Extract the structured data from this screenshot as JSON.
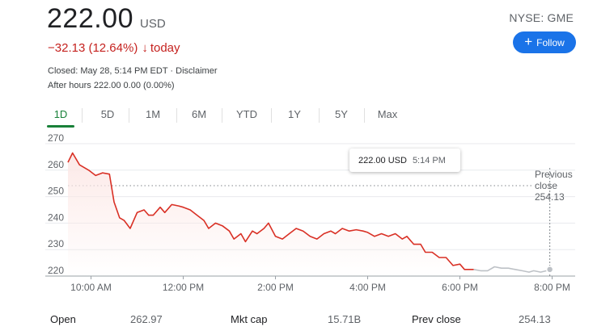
{
  "quote": {
    "price": "222.00",
    "currency": "USD",
    "change": "−32.13 (12.64%)",
    "arrow": "↓",
    "period": "today",
    "closed_text": "Closed: May 28, 5:14 PM EDT ·",
    "disclaimer": "Disclaimer",
    "after_hours": "After hours 222.00 0.00 (0.00%)",
    "ticker": "NYSE: GME",
    "follow_label": "Follow",
    "follow_icon": "plus-icon",
    "accent_color": "#1a73e8",
    "down_color": "#c5221f"
  },
  "tabs": [
    {
      "label": "1D",
      "active": true
    },
    {
      "label": "5D",
      "active": false
    },
    {
      "label": "1M",
      "active": false
    },
    {
      "label": "6M",
      "active": false
    },
    {
      "label": "YTD",
      "active": false
    },
    {
      "label": "1Y",
      "active": false
    },
    {
      "label": "5Y",
      "active": false
    },
    {
      "label": "Max",
      "active": false
    }
  ],
  "tooltip": {
    "price": "222.00 USD",
    "time": "5:14 PM"
  },
  "prev_close_label": [
    "Previous",
    "close",
    "254.13"
  ],
  "stats": [
    {
      "label": "Open",
      "value": "262.97"
    },
    {
      "label": "Mkt cap",
      "value": "15.71B"
    },
    {
      "label": "Prev close",
      "value": "254.13"
    }
  ],
  "chart_data": {
    "type": "line",
    "y_ticks": [
      "270",
      "260",
      "250",
      "240",
      "230",
      "220"
    ],
    "x_ticks": [
      "10:00 AM",
      "12:00 PM",
      "2:00 PM",
      "4:00 PM",
      "6:00 PM",
      "8:00 PM"
    ],
    "ylim": [
      220,
      270
    ],
    "xlim_hours": [
      9.5,
      20.5
    ],
    "reference_line": 254.13,
    "grid": true,
    "series": [
      {
        "session": "regular",
        "color": "#d93025",
        "points": [
          [
            9.5,
            262.97
          ],
          [
            9.6,
            266.5
          ],
          [
            9.75,
            262
          ],
          [
            9.95,
            260
          ],
          [
            10.1,
            258
          ],
          [
            10.25,
            259
          ],
          [
            10.4,
            258.5
          ],
          [
            10.5,
            248
          ],
          [
            10.62,
            242
          ],
          [
            10.72,
            241
          ],
          [
            10.85,
            238
          ],
          [
            11,
            244
          ],
          [
            11.15,
            245
          ],
          [
            11.25,
            243
          ],
          [
            11.35,
            243
          ],
          [
            11.5,
            246
          ],
          [
            11.6,
            244
          ],
          [
            11.75,
            247
          ],
          [
            11.9,
            246.5
          ],
          [
            12,
            246
          ],
          [
            12.15,
            245
          ],
          [
            12.3,
            243
          ],
          [
            12.45,
            241
          ],
          [
            12.55,
            238
          ],
          [
            12.7,
            240
          ],
          [
            12.85,
            239
          ],
          [
            13,
            237
          ],
          [
            13.1,
            234
          ],
          [
            13.25,
            236
          ],
          [
            13.35,
            233
          ],
          [
            13.5,
            237
          ],
          [
            13.6,
            236
          ],
          [
            13.75,
            238
          ],
          [
            13.85,
            240
          ],
          [
            14,
            235
          ],
          [
            14.15,
            234
          ],
          [
            14.3,
            236
          ],
          [
            14.45,
            238
          ],
          [
            14.6,
            237
          ],
          [
            14.75,
            235
          ],
          [
            14.9,
            234
          ],
          [
            15.05,
            236
          ],
          [
            15.2,
            237
          ],
          [
            15.3,
            236
          ],
          [
            15.45,
            238
          ],
          [
            15.6,
            237
          ],
          [
            15.75,
            237.5
          ],
          [
            15.9,
            237
          ],
          [
            16,
            236.5
          ],
          [
            16.15,
            235
          ],
          [
            16.3,
            236
          ],
          [
            16.45,
            235
          ],
          [
            16.6,
            236
          ],
          [
            16.75,
            234
          ],
          [
            16.85,
            235
          ],
          [
            17,
            232
          ],
          [
            17.15,
            232
          ],
          [
            17.25,
            229
          ],
          [
            17.4,
            229
          ],
          [
            17.55,
            227
          ],
          [
            17.7,
            227
          ],
          [
            17.85,
            224
          ],
          [
            18,
            224.5
          ],
          [
            18.1,
            222.5
          ],
          [
            18.3,
            222.5
          ]
        ]
      },
      {
        "session": "after_hours",
        "color": "#bdc1c6",
        "points": [
          [
            18.3,
            222.5
          ],
          [
            18.45,
            222
          ],
          [
            18.6,
            222
          ],
          [
            18.75,
            223.5
          ],
          [
            18.9,
            223
          ],
          [
            19.05,
            223
          ],
          [
            19.2,
            222.5
          ],
          [
            19.35,
            222
          ],
          [
            19.5,
            221.5
          ],
          [
            19.6,
            222
          ],
          [
            19.75,
            221.5
          ],
          [
            19.88,
            222
          ],
          [
            19.95,
            222.5
          ]
        ]
      }
    ]
  }
}
